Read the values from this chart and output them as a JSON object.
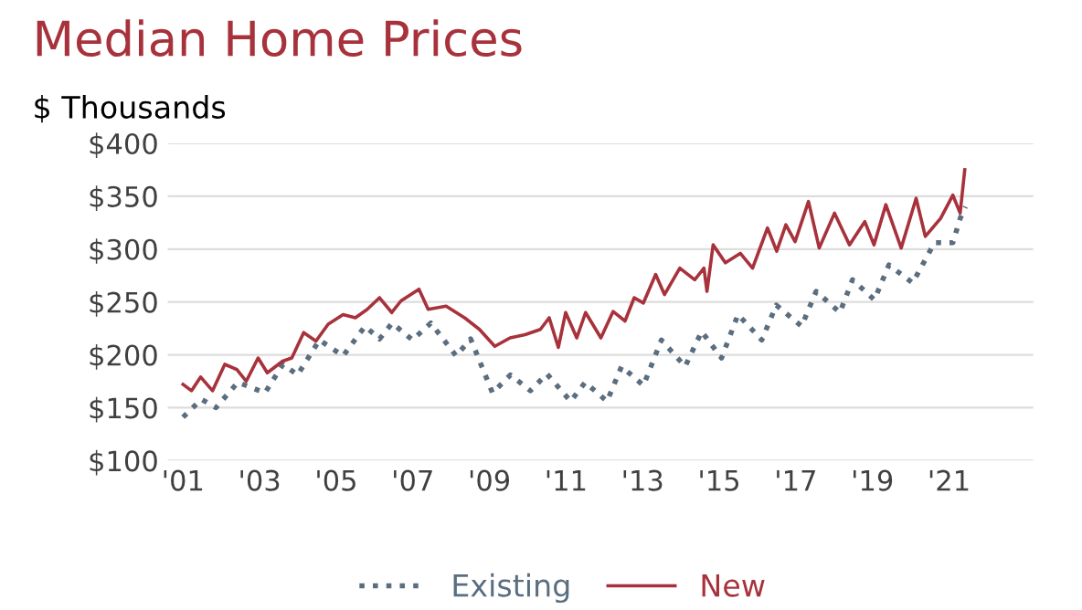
{
  "chart_data": {
    "type": "line",
    "title": "Median Home Prices",
    "subtitle": "$ Thousands",
    "series": [
      {
        "name": "Existing",
        "color": "#5a6e80",
        "line_style": "dotted",
        "x": [
          2001.0,
          2001.48,
          2001.86,
          2002.43,
          2003.14,
          2003.61,
          2003.99,
          2004.56,
          2005.18,
          2005.75,
          2006.13,
          2006.46,
          2006.99,
          2007.47,
          2008.13,
          2008.51,
          2009.08,
          2009.55,
          2010.07,
          2010.5,
          2011.12,
          2011.5,
          2012.07,
          2012.45,
          2013.02,
          2013.49,
          2014.11,
          2014.54,
          2015.06,
          2015.49,
          2016.11,
          2016.49,
          2017.15,
          2017.53,
          2018.15,
          2018.48,
          2019.05,
          2019.43,
          2020.05,
          2020.62,
          2021.1,
          2021.29,
          2021.43
        ],
        "values": [
          141,
          158,
          150,
          174,
          164,
          191,
          181,
          214,
          199,
          227,
          215,
          230,
          214,
          230,
          199,
          215,
          164,
          181,
          166,
          182,
          156,
          174,
          156,
          189,
          171,
          214,
          189,
          222,
          197,
          238,
          214,
          247,
          227,
          260,
          240,
          271,
          252,
          285,
          268,
          306,
          306,
          329,
          340
        ]
      },
      {
        "name": "New",
        "color": "#a8323c",
        "line_style": "solid",
        "x": [
          2001.0,
          2001.22,
          2001.46,
          2001.77,
          2002.09,
          2002.41,
          2002.65,
          2002.96,
          2003.2,
          2003.6,
          2003.84,
          2004.15,
          2004.47,
          2004.79,
          2005.18,
          2005.5,
          2005.81,
          2006.13,
          2006.45,
          2006.69,
          2007.16,
          2007.4,
          2007.87,
          2008.35,
          2008.74,
          2009.14,
          2009.54,
          2009.93,
          2010.33,
          2010.56,
          2010.8,
          2010.99,
          2011.28,
          2011.51,
          2011.91,
          2012.23,
          2012.54,
          2012.78,
          2013.02,
          2013.34,
          2013.57,
          2013.97,
          2014.36,
          2014.6,
          2014.68,
          2014.84,
          2015.16,
          2015.55,
          2015.87,
          2016.26,
          2016.5,
          2016.74,
          2016.98,
          2017.33,
          2017.61,
          2018.01,
          2018.4,
          2018.8,
          2019.04,
          2019.35,
          2019.75,
          2020.14,
          2020.38,
          2020.78,
          2021.1,
          2021.29,
          2021.41
        ],
        "values": [
          172,
          166,
          179,
          166,
          191,
          186,
          175,
          197,
          183,
          194,
          197,
          221,
          213,
          229,
          238,
          235,
          243,
          254,
          240,
          251,
          262,
          243,
          246,
          235,
          224,
          208,
          216,
          219,
          224,
          235,
          207,
          240,
          216,
          240,
          216,
          241,
          232,
          254,
          249,
          276,
          257,
          282,
          271,
          282,
          260,
          304,
          287,
          296,
          282,
          320,
          298,
          323,
          307,
          345,
          301,
          334,
          304,
          326,
          304,
          342,
          301,
          348,
          312,
          329,
          351,
          334,
          375
        ]
      }
    ],
    "xlim": [
      2000.6,
      2023.2
    ],
    "xticks": [
      {
        "value": 2001,
        "label": "'01"
      },
      {
        "value": 2003,
        "label": "'03"
      },
      {
        "value": 2005,
        "label": "'05"
      },
      {
        "value": 2007,
        "label": "'07"
      },
      {
        "value": 2009,
        "label": "'09"
      },
      {
        "value": 2011,
        "label": "'11"
      },
      {
        "value": 2013,
        "label": "'13"
      },
      {
        "value": 2015,
        "label": "'15"
      },
      {
        "value": 2017,
        "label": "'17"
      },
      {
        "value": 2019,
        "label": "'19"
      },
      {
        "value": 2021,
        "label": "'21"
      }
    ],
    "ylim": [
      100,
      400
    ],
    "yticks": [
      {
        "value": 100,
        "label": "$100"
      },
      {
        "value": 150,
        "label": "$150"
      },
      {
        "value": 200,
        "label": "$200"
      },
      {
        "value": 250,
        "label": "$250"
      },
      {
        "value": 300,
        "label": "$300"
      },
      {
        "value": 350,
        "label": "$350"
      },
      {
        "value": 400,
        "label": "$400"
      }
    ],
    "grid": "y",
    "legend": "bottom"
  }
}
